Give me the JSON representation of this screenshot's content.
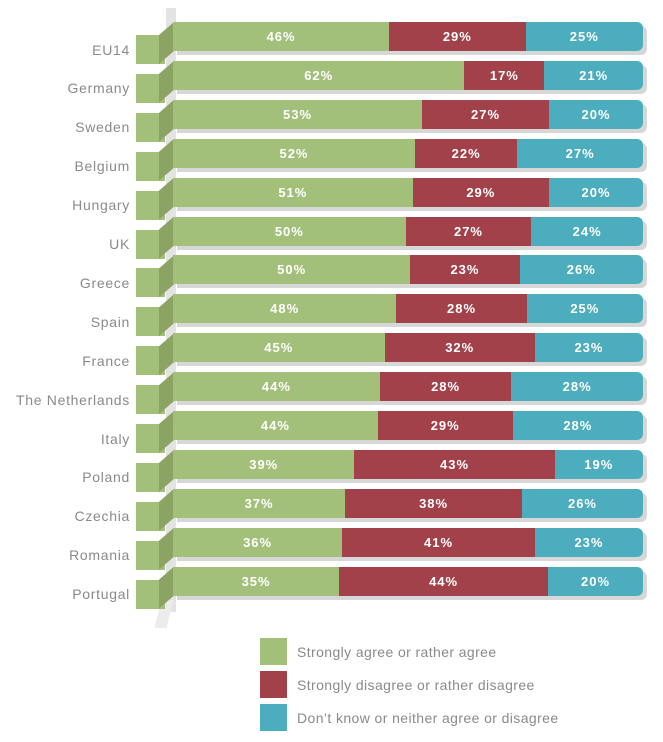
{
  "chart_data": {
    "type": "bar",
    "orientation": "horizontal",
    "stacked": true,
    "value_suffix": "%",
    "xlim": [
      0,
      100
    ],
    "grid": false,
    "legend_position": "bottom",
    "categories": [
      "EU14",
      "Germany",
      "Sweden",
      "Belgium",
      "Hungary",
      "UK",
      "Greece",
      "Spain",
      "France",
      "The Netherlands",
      "Italy",
      "Poland",
      "Czechia",
      "Romania",
      "Portugal"
    ],
    "series": [
      {
        "name": "Strongly agree or rather agree",
        "color": "#a3c07b",
        "values": [
          46,
          62,
          53,
          52,
          51,
          50,
          50,
          48,
          45,
          44,
          44,
          39,
          37,
          36,
          35
        ]
      },
      {
        "name": "Strongly disagree or rather disagree",
        "color": "#a2414a",
        "values": [
          29,
          17,
          27,
          22,
          29,
          27,
          23,
          28,
          32,
          28,
          29,
          43,
          38,
          41,
          44
        ]
      },
      {
        "name": "Don’t know or neither agree or disagree",
        "color": "#4badbd",
        "values": [
          25,
          21,
          20,
          27,
          20,
          24,
          26,
          25,
          23,
          28,
          28,
          19,
          26,
          23,
          20
        ]
      }
    ]
  },
  "style_colors": {
    "cap_green": "#a3c07b",
    "face_green": "#8ba463",
    "axis_strip": "#e3e3e3",
    "bar_shadow": "#d7d7d7",
    "label_gray": "#8a8a8a",
    "value_text": "#ffffff"
  },
  "layout_values": {
    "first_bar_top": 22,
    "row_pitch": 38.9
  }
}
